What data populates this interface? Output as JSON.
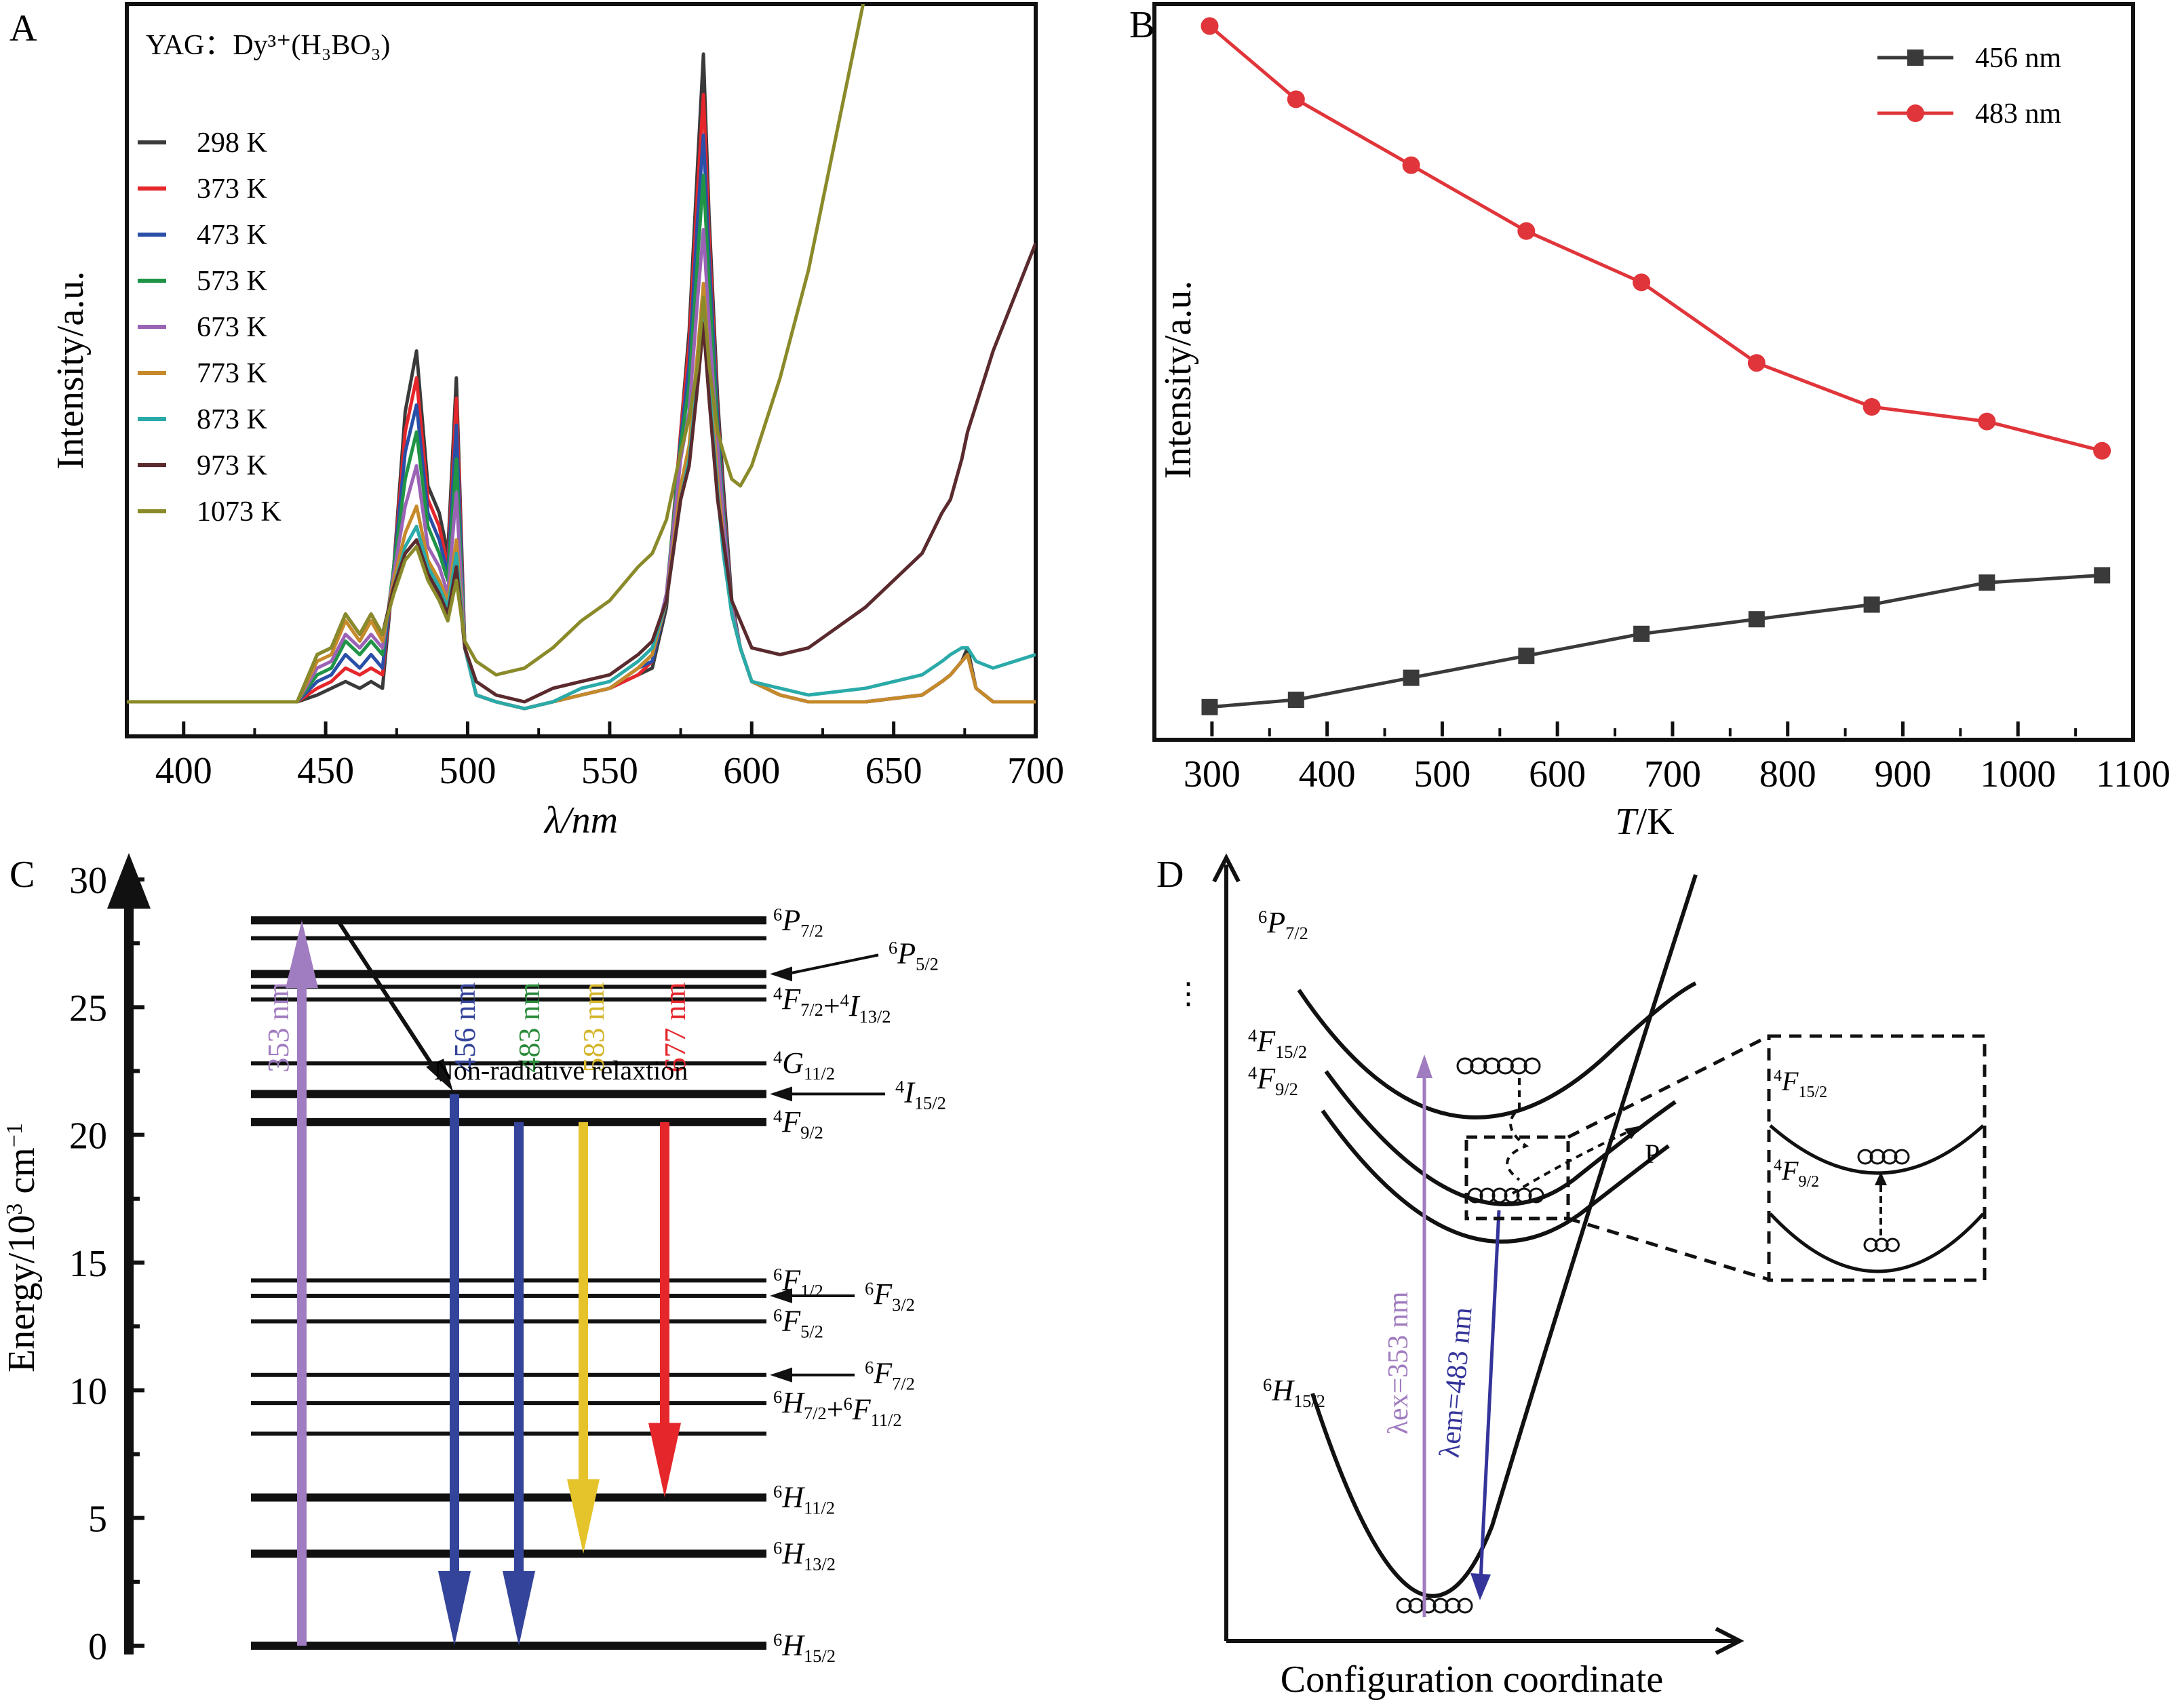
{
  "panels": {
    "A": "A",
    "B": "B",
    "C": "C",
    "D": "D"
  },
  "chart_data": [
    {
      "id": "A",
      "type": "line",
      "title": "YAG：Dy³⁺(H₃BO₃)",
      "xlabel": "λ/nm",
      "ylabel": "Intensity/a.u.",
      "xlim": [
        380,
        700
      ],
      "ylim": [
        0,
        1.0
      ],
      "xticks": [
        400,
        450,
        500,
        550,
        600,
        650,
        700
      ],
      "legend_position": "top-left",
      "grid": false,
      "x": [
        380,
        440,
        447,
        452,
        457,
        462,
        466,
        470,
        474,
        478,
        482,
        486,
        490,
        493,
        496,
        499,
        503,
        510,
        520,
        530,
        540,
        550,
        560,
        565,
        570,
        575,
        578,
        581,
        583,
        585,
        588,
        590,
        593,
        596,
        600,
        610,
        620,
        640,
        660,
        667,
        670,
        674,
        676,
        679,
        685,
        700
      ],
      "series": [
        {
          "name": "298 K",
          "color": "#3a3a3a",
          "values": [
            0.0,
            0.0,
            0.01,
            0.02,
            0.03,
            0.02,
            0.03,
            0.02,
            0.2,
            0.43,
            0.52,
            0.32,
            0.28,
            0.22,
            0.48,
            0.08,
            0.01,
            0.0,
            -0.01,
            0.0,
            0.01,
            0.02,
            0.04,
            0.05,
            0.14,
            0.4,
            0.55,
            0.8,
            0.96,
            0.72,
            0.45,
            0.32,
            0.15,
            0.08,
            0.03,
            0.01,
            0.0,
            0.0,
            0.01,
            0.03,
            0.04,
            0.06,
            0.08,
            0.02,
            0.0,
            0.0
          ]
        },
        {
          "name": "373 K",
          "color": "#e5262b",
          "values": [
            0.0,
            0.0,
            0.02,
            0.03,
            0.05,
            0.04,
            0.05,
            0.04,
            0.2,
            0.4,
            0.48,
            0.3,
            0.26,
            0.2,
            0.45,
            0.08,
            0.01,
            0.0,
            -0.01,
            0.0,
            0.01,
            0.02,
            0.04,
            0.06,
            0.15,
            0.4,
            0.53,
            0.76,
            0.9,
            0.69,
            0.43,
            0.3,
            0.14,
            0.08,
            0.03,
            0.01,
            0.0,
            0.0,
            0.01,
            0.03,
            0.04,
            0.06,
            0.07,
            0.02,
            0.0,
            0.0
          ]
        },
        {
          "name": "473 K",
          "color": "#2a4fa8",
          "values": [
            0.0,
            0.0,
            0.03,
            0.04,
            0.07,
            0.05,
            0.07,
            0.05,
            0.2,
            0.37,
            0.44,
            0.28,
            0.24,
            0.19,
            0.41,
            0.08,
            0.01,
            0.0,
            -0.01,
            0.0,
            0.01,
            0.02,
            0.05,
            0.06,
            0.15,
            0.39,
            0.5,
            0.72,
            0.84,
            0.66,
            0.42,
            0.29,
            0.14,
            0.08,
            0.03,
            0.01,
            0.0,
            0.0,
            0.01,
            0.03,
            0.04,
            0.06,
            0.07,
            0.02,
            0.0,
            0.0
          ]
        },
        {
          "name": "573 K",
          "color": "#1f9447",
          "values": [
            0.0,
            0.0,
            0.04,
            0.05,
            0.09,
            0.07,
            0.09,
            0.07,
            0.2,
            0.33,
            0.4,
            0.26,
            0.22,
            0.18,
            0.36,
            0.08,
            0.01,
            0.0,
            -0.01,
            0.0,
            0.01,
            0.02,
            0.05,
            0.07,
            0.16,
            0.38,
            0.47,
            0.66,
            0.78,
            0.62,
            0.4,
            0.28,
            0.14,
            0.08,
            0.03,
            0.01,
            0.0,
            0.0,
            0.01,
            0.03,
            0.04,
            0.06,
            0.07,
            0.02,
            0.0,
            0.0
          ]
        },
        {
          "name": "673 K",
          "color": "#9b63b5",
          "values": [
            0.0,
            0.0,
            0.05,
            0.06,
            0.1,
            0.08,
            0.1,
            0.08,
            0.19,
            0.29,
            0.35,
            0.23,
            0.2,
            0.16,
            0.31,
            0.08,
            0.01,
            0.0,
            -0.01,
            0.0,
            0.01,
            0.02,
            0.05,
            0.07,
            0.16,
            0.36,
            0.43,
            0.6,
            0.7,
            0.56,
            0.38,
            0.27,
            0.14,
            0.08,
            0.03,
            0.01,
            0.0,
            0.0,
            0.01,
            0.03,
            0.04,
            0.06,
            0.07,
            0.02,
            0.0,
            0.0
          ]
        },
        {
          "name": "773 K",
          "color": "#c68a2a",
          "values": [
            0.0,
            0.0,
            0.06,
            0.07,
            0.12,
            0.09,
            0.12,
            0.09,
            0.18,
            0.25,
            0.29,
            0.21,
            0.18,
            0.15,
            0.24,
            0.08,
            0.01,
            0.0,
            -0.01,
            0.0,
            0.01,
            0.02,
            0.05,
            0.07,
            0.15,
            0.32,
            0.38,
            0.52,
            0.62,
            0.5,
            0.33,
            0.24,
            0.13,
            0.08,
            0.03,
            0.01,
            0.0,
            0.0,
            0.01,
            0.03,
            0.04,
            0.06,
            0.07,
            0.02,
            0.0,
            0.0
          ]
        },
        {
          "name": "873 K",
          "color": "#2aaaa8",
          "values": [
            0.0,
            0.0,
            0.07,
            0.08,
            0.13,
            0.1,
            0.13,
            0.1,
            0.17,
            0.23,
            0.26,
            0.2,
            0.17,
            0.14,
            0.22,
            0.08,
            0.01,
            0.0,
            -0.01,
            0.0,
            0.02,
            0.03,
            0.06,
            0.08,
            0.15,
            0.3,
            0.36,
            0.48,
            0.58,
            0.47,
            0.31,
            0.22,
            0.13,
            0.08,
            0.03,
            0.02,
            0.01,
            0.02,
            0.04,
            0.06,
            0.07,
            0.08,
            0.08,
            0.06,
            0.05,
            0.07
          ]
        },
        {
          "name": "973 K",
          "color": "#5a2a2e",
          "values": [
            0.0,
            0.0,
            0.07,
            0.08,
            0.13,
            0.1,
            0.13,
            0.1,
            0.17,
            0.22,
            0.24,
            0.19,
            0.16,
            0.13,
            0.2,
            0.08,
            0.03,
            0.01,
            0.0,
            0.02,
            0.03,
            0.04,
            0.07,
            0.09,
            0.15,
            0.3,
            0.35,
            0.47,
            0.56,
            0.45,
            0.3,
            0.24,
            0.15,
            0.12,
            0.08,
            0.07,
            0.08,
            0.14,
            0.22,
            0.28,
            0.3,
            0.36,
            0.4,
            0.44,
            0.52,
            0.68
          ]
        },
        {
          "name": "1073 K",
          "color": "#8a8a2a",
          "values": [
            0.0,
            0.0,
            0.07,
            0.08,
            0.13,
            0.1,
            0.13,
            0.1,
            0.16,
            0.21,
            0.23,
            0.18,
            0.15,
            0.12,
            0.18,
            0.09,
            0.06,
            0.04,
            0.05,
            0.08,
            0.12,
            0.15,
            0.2,
            0.22,
            0.27,
            0.37,
            0.42,
            0.5,
            0.6,
            0.5,
            0.4,
            0.37,
            0.33,
            0.32,
            0.35,
            0.48,
            0.64,
            1.05,
            1.3,
            1.3,
            1.3,
            1.3,
            1.3,
            1.3,
            1.3,
            1.3
          ]
        }
      ]
    },
    {
      "id": "B",
      "type": "line",
      "title": "",
      "xlabel": "T/K",
      "ylabel": "Intensity/a.u.",
      "xlim": [
        250,
        1100
      ],
      "ylim": [
        0,
        1.0
      ],
      "xticks": [
        300,
        400,
        500,
        600,
        700,
        800,
        900,
        1000,
        1100
      ],
      "legend_position": "top-right",
      "grid": false,
      "x": [
        298,
        373,
        473,
        573,
        673,
        773,
        873,
        973,
        1073
      ],
      "series": [
        {
          "name": "456 nm",
          "color": "#3a3a3a",
          "marker": "square",
          "values": [
            0.04,
            0.05,
            0.08,
            0.11,
            0.14,
            0.16,
            0.18,
            0.21,
            0.22
          ]
        },
        {
          "name": "483 nm",
          "color": "#e0353a",
          "marker": "circle",
          "values": [
            0.97,
            0.87,
            0.78,
            0.69,
            0.62,
            0.51,
            0.45,
            0.43,
            0.39
          ]
        }
      ]
    }
  ],
  "panel_C": {
    "ylabel": "Energy/10³ cm⁻¹",
    "yticks": [
      0,
      5,
      10,
      15,
      20,
      25,
      30
    ],
    "ylim": [
      0,
      31
    ],
    "levels": [
      {
        "energy": 28.4,
        "thick": true,
        "label": "6P7/2"
      },
      {
        "energy": 27.7,
        "thick": false
      },
      {
        "energy": 26.3,
        "thick": true,
        "label": "6P5/2",
        "arrow": true
      },
      {
        "energy": 25.8,
        "thick": false
      },
      {
        "energy": 25.3,
        "thick": false,
        "label": "4F7/2+4I13/2"
      },
      {
        "energy": 22.8,
        "thick": false,
        "label": "4G11/2"
      },
      {
        "energy": 21.6,
        "thick": true,
        "label": "4I15/2",
        "arrow": true
      },
      {
        "energy": 20.5,
        "thick": true,
        "label": "4F9/2"
      },
      {
        "energy": 14.3,
        "thick": false,
        "label": "6F1/2"
      },
      {
        "energy": 13.7,
        "thick": false,
        "label": "6F3/2",
        "arrow": true
      },
      {
        "energy": 12.7,
        "thick": false,
        "label": "6F5/2"
      },
      {
        "energy": 10.6,
        "thick": false,
        "label": "6F7/2",
        "arrow": true
      },
      {
        "energy": 9.5,
        "thick": false,
        "label": "6H7/2+6F11/2"
      },
      {
        "energy": 8.3,
        "thick": false
      },
      {
        "energy": 5.8,
        "thick": true,
        "label": "6H11/2"
      },
      {
        "energy": 3.6,
        "thick": true,
        "label": "6H13/2"
      },
      {
        "energy": 0.0,
        "thick": true,
        "label": "6H15/2"
      }
    ],
    "transitions": [
      {
        "label": "353 nm",
        "color": "#a07cc0",
        "from": 0.0,
        "to": 28.4,
        "direction": "up"
      },
      {
        "label": "456 nm",
        "color": "#34449a",
        "from": 21.6,
        "to": 0.0,
        "direction": "down"
      },
      {
        "label": "483 nm",
        "color": "#34449a",
        "label_color": "#2a8a3a",
        "from": 20.5,
        "to": 0.0,
        "direction": "down"
      },
      {
        "label": "583 nm",
        "color": "#e5c32a",
        "label_color": "#d4b52a",
        "from": 20.5,
        "to": 3.6,
        "direction": "down"
      },
      {
        "label": "677 nm",
        "color": "#e5262b",
        "from": 20.5,
        "to": 5.8,
        "direction": "down"
      }
    ],
    "nonrad_label": "Non-radiative relaxtion"
  },
  "panel_D": {
    "xlabel": "Configuration coordinate",
    "labels": {
      "p72": "6P7/2",
      "f152": "4F15/2",
      "f92": "4F9/2",
      "h152": "6H15/2",
      "p_point": "P",
      "ex": "λex=353 nm",
      "em": "λem=483 nm",
      "inset_f152": "4F15/2",
      "inset_f92": "4F9/2"
    },
    "colors": {
      "ex": "#a07cc0",
      "em": "#34349a"
    }
  }
}
